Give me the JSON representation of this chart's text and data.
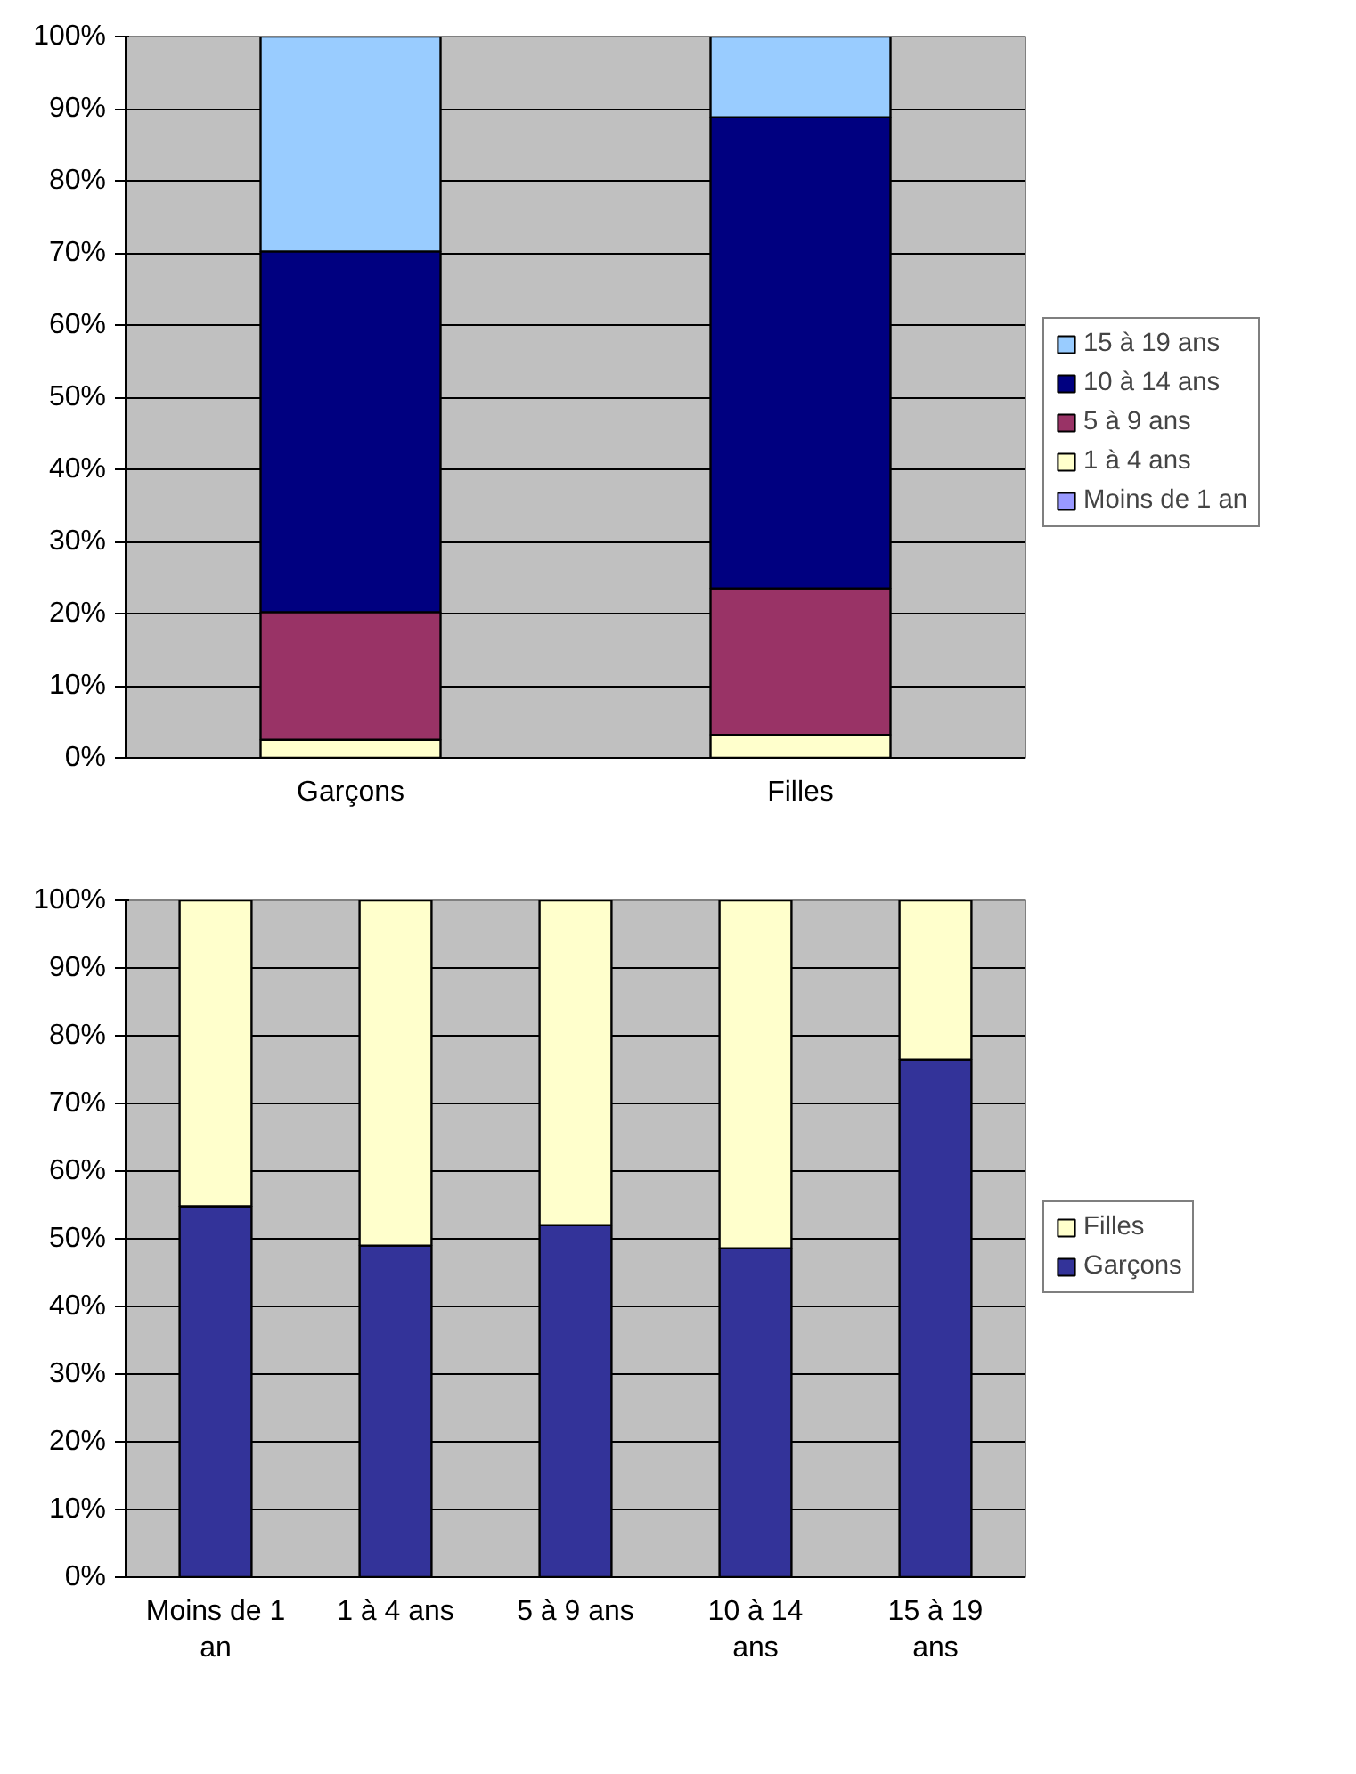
{
  "chart_data": [
    {
      "type": "bar",
      "stacked": true,
      "categories": [
        "Garçons",
        "Filles"
      ],
      "series": [
        {
          "name": "Moins de 1 an",
          "color": "#9999ff",
          "values": [
            0,
            0
          ]
        },
        {
          "name": "1 à 4 ans",
          "color": "#ffffcc",
          "values": [
            2.5,
            3.2
          ]
        },
        {
          "name": "5 à 9 ans",
          "color": "#993366",
          "values": [
            17.7,
            20.3
          ]
        },
        {
          "name": "10 à 14 ans",
          "color": "#000080",
          "values": [
            50,
            65.3
          ]
        },
        {
          "name": "15 à 19 ans",
          "color": "#99ccff",
          "values": [
            29.8,
            11.2
          ]
        }
      ],
      "ylim": [
        0,
        100
      ],
      "yticks": [
        {
          "value": 0,
          "label": "0%"
        },
        {
          "value": 10,
          "label": "10%"
        },
        {
          "value": 20,
          "label": "20%"
        },
        {
          "value": 30,
          "label": "30%"
        },
        {
          "value": 40,
          "label": "40%"
        },
        {
          "value": 50,
          "label": "50%"
        },
        {
          "value": 60,
          "label": "60%"
        },
        {
          "value": 70,
          "label": "70%"
        },
        {
          "value": 80,
          "label": "80%"
        },
        {
          "value": 90,
          "label": "90%"
        },
        {
          "value": 100,
          "label": "100%"
        }
      ],
      "grid": "y",
      "legend": "right"
    },
    {
      "type": "bar",
      "stacked": true,
      "categories": [
        "Moins de 1 an",
        "1 à 4 ans",
        "5 à 9 ans",
        "10 à 14 ans",
        "15 à 19 ans"
      ],
      "series": [
        {
          "name": "Garçons",
          "color": "#333399",
          "values": [
            54.8,
            49,
            52,
            48.6,
            76.5
          ]
        },
        {
          "name": "Filles",
          "color": "#ffffcc",
          "values": [
            45.2,
            51,
            48,
            51.4,
            23.5
          ]
        }
      ],
      "ylim": [
        0,
        100
      ],
      "yticks": [
        {
          "value": 0,
          "label": "0%"
        },
        {
          "value": 10,
          "label": "10%"
        },
        {
          "value": 20,
          "label": "20%"
        },
        {
          "value": 30,
          "label": "30%"
        },
        {
          "value": 40,
          "label": "40%"
        },
        {
          "value": 50,
          "label": "50%"
        },
        {
          "value": 60,
          "label": "60%"
        },
        {
          "value": 70,
          "label": "70%"
        },
        {
          "value": 80,
          "label": "80%"
        },
        {
          "value": 90,
          "label": "90%"
        },
        {
          "value": 100,
          "label": "100%"
        }
      ],
      "grid": "y",
      "legend": "right"
    }
  ]
}
